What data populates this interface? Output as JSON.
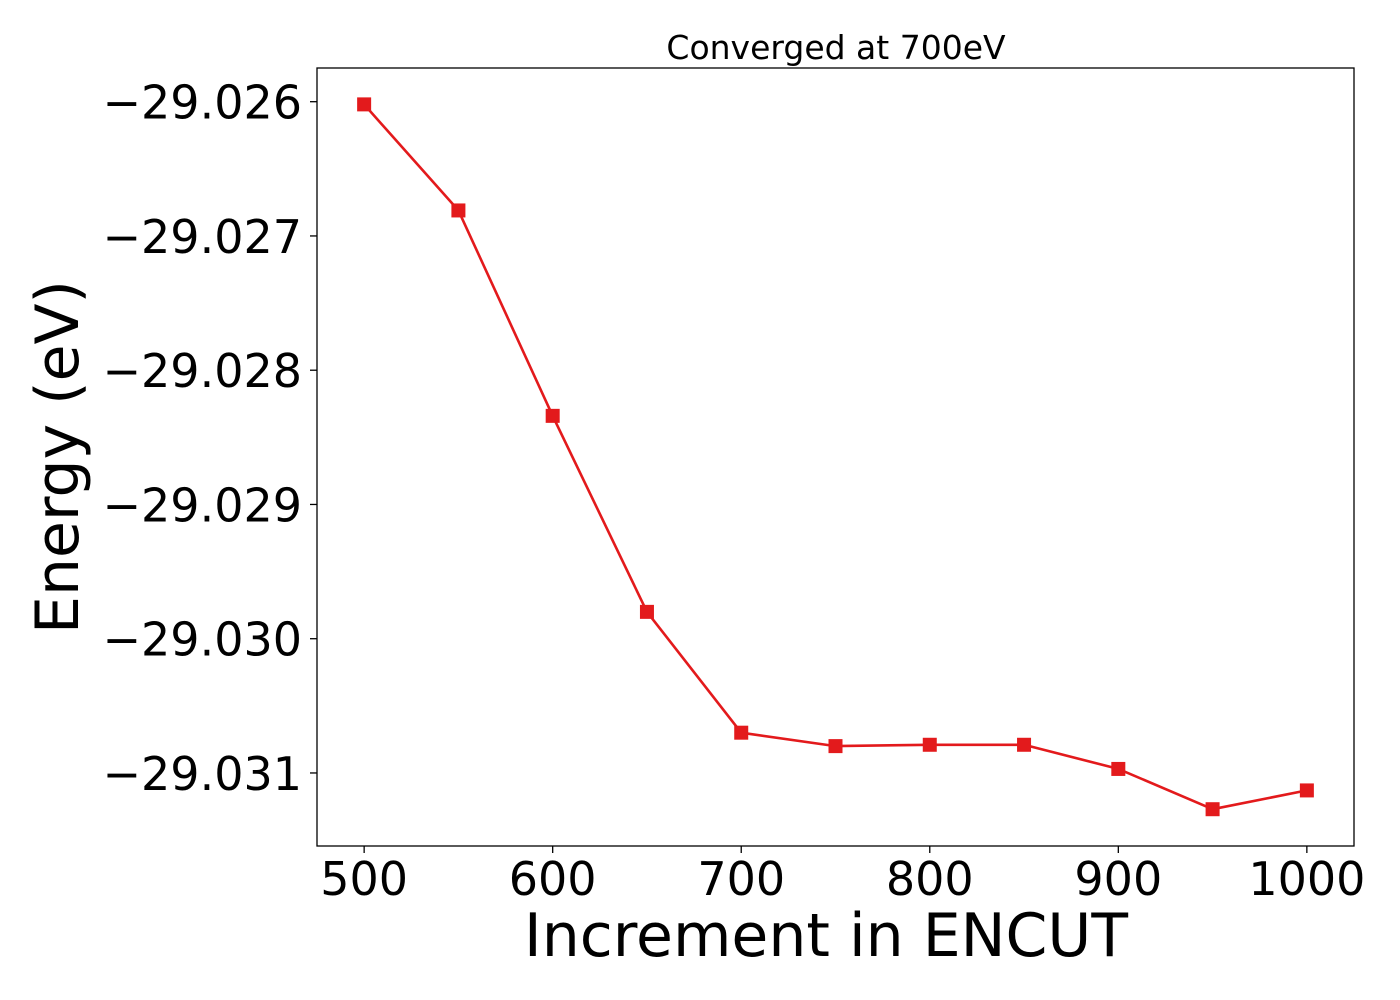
{
  "chart_data": {
    "type": "line",
    "title": "Converged at 700eV",
    "xlabel": "Increment in ENCUT",
    "ylabel": "Energy (eV)",
    "x": [
      500,
      550,
      600,
      650,
      700,
      750,
      800,
      850,
      900,
      950,
      1000
    ],
    "series": [
      {
        "values": [
          -29.02602,
          -29.02681,
          -29.02834,
          -29.0298,
          -29.0307,
          -29.0308,
          -29.03079,
          -29.03079,
          -29.03097,
          -29.03127,
          -29.03113
        ],
        "color": "#e31a1c",
        "marker": "square"
      }
    ],
    "xticks": [
      500,
      600,
      700,
      800,
      900,
      1000
    ],
    "xtick_labels": [
      "500",
      "600",
      "700",
      "800",
      "900",
      "1000"
    ],
    "yticks": [
      -29.026,
      -29.027,
      -29.028,
      -29.029,
      -29.03,
      -29.031
    ],
    "ytick_labels": [
      "−29.026",
      "−29.027",
      "−29.028",
      "−29.029",
      "−29.030",
      "−29.031"
    ],
    "xlim": [
      475,
      1025
    ],
    "ylim": [
      -29.031544,
      -29.025749
    ],
    "grid": false,
    "legend": "none"
  }
}
